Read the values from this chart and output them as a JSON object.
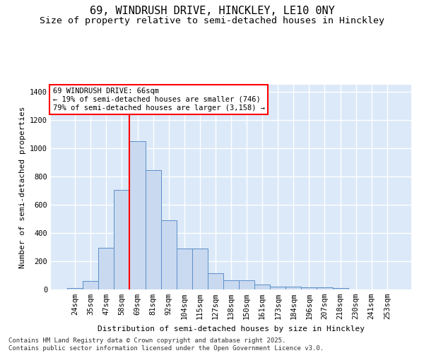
{
  "title": "69, WINDRUSH DRIVE, HINCKLEY, LE10 0NY",
  "subtitle": "Size of property relative to semi-detached houses in Hinckley",
  "xlabel": "Distribution of semi-detached houses by size in Hinckley",
  "ylabel": "Number of semi-detached properties",
  "bar_color": "#c9d9f0",
  "bar_edge_color": "#5b8fc9",
  "background_color": "#dce9f8",
  "grid_color": "#ffffff",
  "fig_background": "#ffffff",
  "categories": [
    "24sqm",
    "35sqm",
    "47sqm",
    "58sqm",
    "69sqm",
    "81sqm",
    "92sqm",
    "104sqm",
    "115sqm",
    "127sqm",
    "138sqm",
    "150sqm",
    "161sqm",
    "173sqm",
    "184sqm",
    "196sqm",
    "207sqm",
    "218sqm",
    "230sqm",
    "241sqm",
    "253sqm"
  ],
  "values": [
    10,
    60,
    295,
    705,
    1050,
    845,
    490,
    290,
    290,
    115,
    63,
    63,
    35,
    20,
    20,
    13,
    13,
    10,
    0,
    0,
    0
  ],
  "red_line_index": 4,
  "annotation_text": "69 WINDRUSH DRIVE: 66sqm\n← 19% of semi-detached houses are smaller (746)\n79% of semi-detached houses are larger (3,158) →",
  "ylim": [
    0,
    1450
  ],
  "yticks": [
    0,
    200,
    400,
    600,
    800,
    1000,
    1200,
    1400
  ],
  "footer_line1": "Contains HM Land Registry data © Crown copyright and database right 2025.",
  "footer_line2": "Contains public sector information licensed under the Open Government Licence v3.0.",
  "title_fontsize": 11,
  "subtitle_fontsize": 9.5,
  "axis_label_fontsize": 8,
  "tick_fontsize": 7.5,
  "annotation_fontsize": 7.5,
  "footer_fontsize": 6.5
}
